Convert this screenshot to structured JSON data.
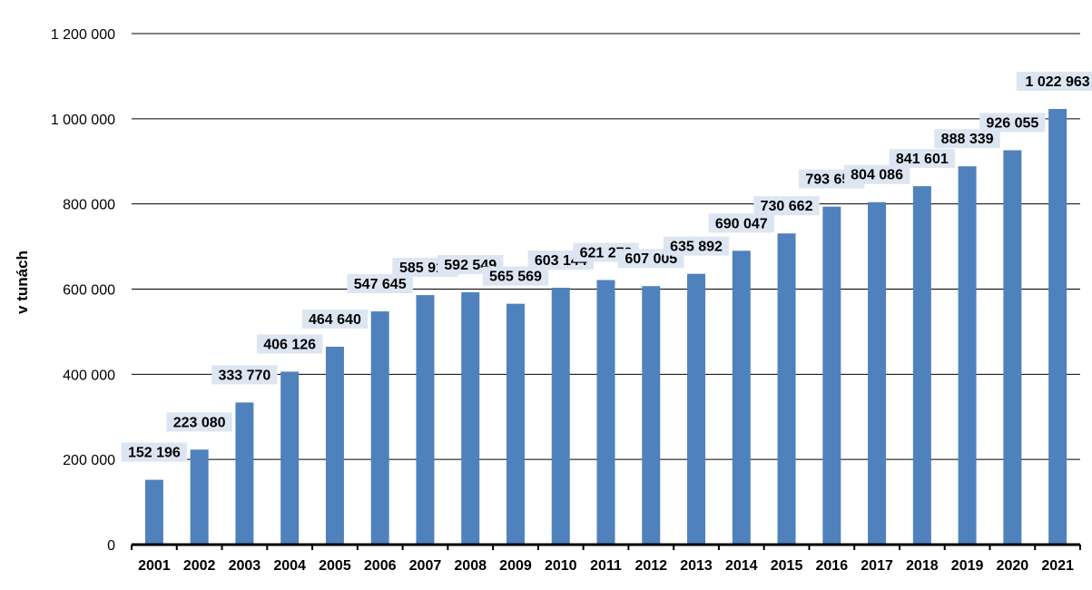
{
  "chart_data": {
    "type": "bar",
    "title": "",
    "xlabel": "",
    "ylabel": "v tunách",
    "categories": [
      "2001",
      "2002",
      "2003",
      "2004",
      "2005",
      "2006",
      "2007",
      "2008",
      "2009",
      "2010",
      "2011",
      "2012",
      "2013",
      "2014",
      "2015",
      "2016",
      "2017",
      "2018",
      "2019",
      "2020",
      "2021"
    ],
    "values": [
      152196,
      223080,
      333770,
      406126,
      464640,
      547645,
      585911,
      592549,
      565569,
      603144,
      621273,
      607005,
      635892,
      690047,
      730662,
      793658,
      804086,
      841601,
      888339,
      926055,
      1022963
    ],
    "value_labels": [
      "152 196",
      "223 080",
      "333 770",
      "406 126",
      "464 640",
      "547 645",
      "585 911",
      "592 549",
      "565 569",
      "603 144",
      "621 273",
      "607 005",
      "635 892",
      "690 047",
      "730 662",
      "793 658",
      "804 086",
      "841 601",
      "888 339",
      "926 055",
      "1 022 963"
    ],
    "ylim": [
      0,
      1200000
    ],
    "yticks": [
      0,
      200000,
      400000,
      600000,
      800000,
      1000000,
      1200000
    ],
    "ytick_labels": [
      "0",
      "200 000",
      "400 000",
      "600 000",
      "800 000",
      "1 000 000",
      "1 200 000"
    ],
    "grid": true,
    "legend": "none",
    "colors": {
      "bar": "#4f81bd",
      "label_bg": "#dce6f2",
      "grid": "#000000"
    }
  }
}
